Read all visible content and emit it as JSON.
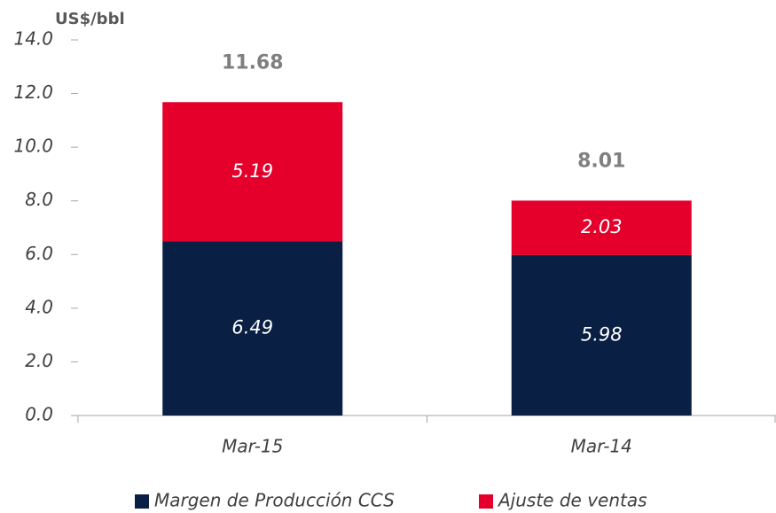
{
  "chart_data": {
    "type": "stacked_bar",
    "y_axis_label": "US$/bbl",
    "categories": [
      "Mar-15",
      "Mar-14"
    ],
    "series": [
      {
        "name": "Margen de Producción CCS",
        "color": "#0a1f44",
        "values": [
          6.49,
          5.98
        ]
      },
      {
        "name": "Ajuste de ventas",
        "color": "#e4002b",
        "values": [
          5.19,
          2.03
        ]
      }
    ],
    "totals": [
      11.68,
      8.01
    ],
    "ylim": [
      0,
      14
    ],
    "yticks": [
      {
        "value": 0,
        "label": "0.0"
      },
      {
        "value": 2,
        "label": "2.0"
      },
      {
        "value": 4,
        "label": "4.0"
      },
      {
        "value": 6,
        "label": "6.0"
      },
      {
        "value": 8,
        "label": "8.0"
      },
      {
        "value": 10,
        "label": "10.0"
      },
      {
        "value": 12,
        "label": "12.0"
      },
      {
        "value": 14,
        "label": "14.0"
      }
    ],
    "grid": false,
    "legend": "bottom"
  }
}
